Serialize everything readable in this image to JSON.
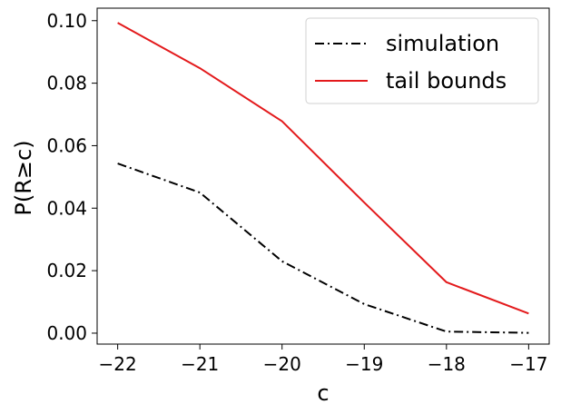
{
  "chart_data": {
    "type": "line",
    "xlabel": "c",
    "ylabel": "P(R≥c)",
    "xlim": [
      -22.25,
      -16.75
    ],
    "ylim": [
      -0.0035,
      0.104
    ],
    "xticks": [
      -22,
      -21,
      -20,
      -19,
      -18,
      -17
    ],
    "xtick_labels": [
      "−22",
      "−21",
      "−20",
      "−19",
      "−18",
      "−17"
    ],
    "yticks": [
      0.0,
      0.02,
      0.04,
      0.06,
      0.08,
      0.1
    ],
    "ytick_labels": [
      "0.00",
      "0.02",
      "0.04",
      "0.06",
      "0.08",
      "0.10"
    ],
    "x": [
      -22,
      -21,
      -20,
      -19,
      -18,
      -17
    ],
    "series": [
      {
        "name": "simulation",
        "values": [
          0.0543,
          0.045,
          0.023,
          0.0093,
          0.0005,
          0.0001
        ],
        "color": "#000000",
        "linestyle": "dashdot"
      },
      {
        "name": "tail bounds",
        "values": [
          0.0993,
          0.0848,
          0.0678,
          0.0418,
          0.0163,
          0.0063
        ],
        "color": "#e31a1c",
        "linestyle": "solid"
      }
    ],
    "legend_position": "top-right",
    "grid": false
  }
}
